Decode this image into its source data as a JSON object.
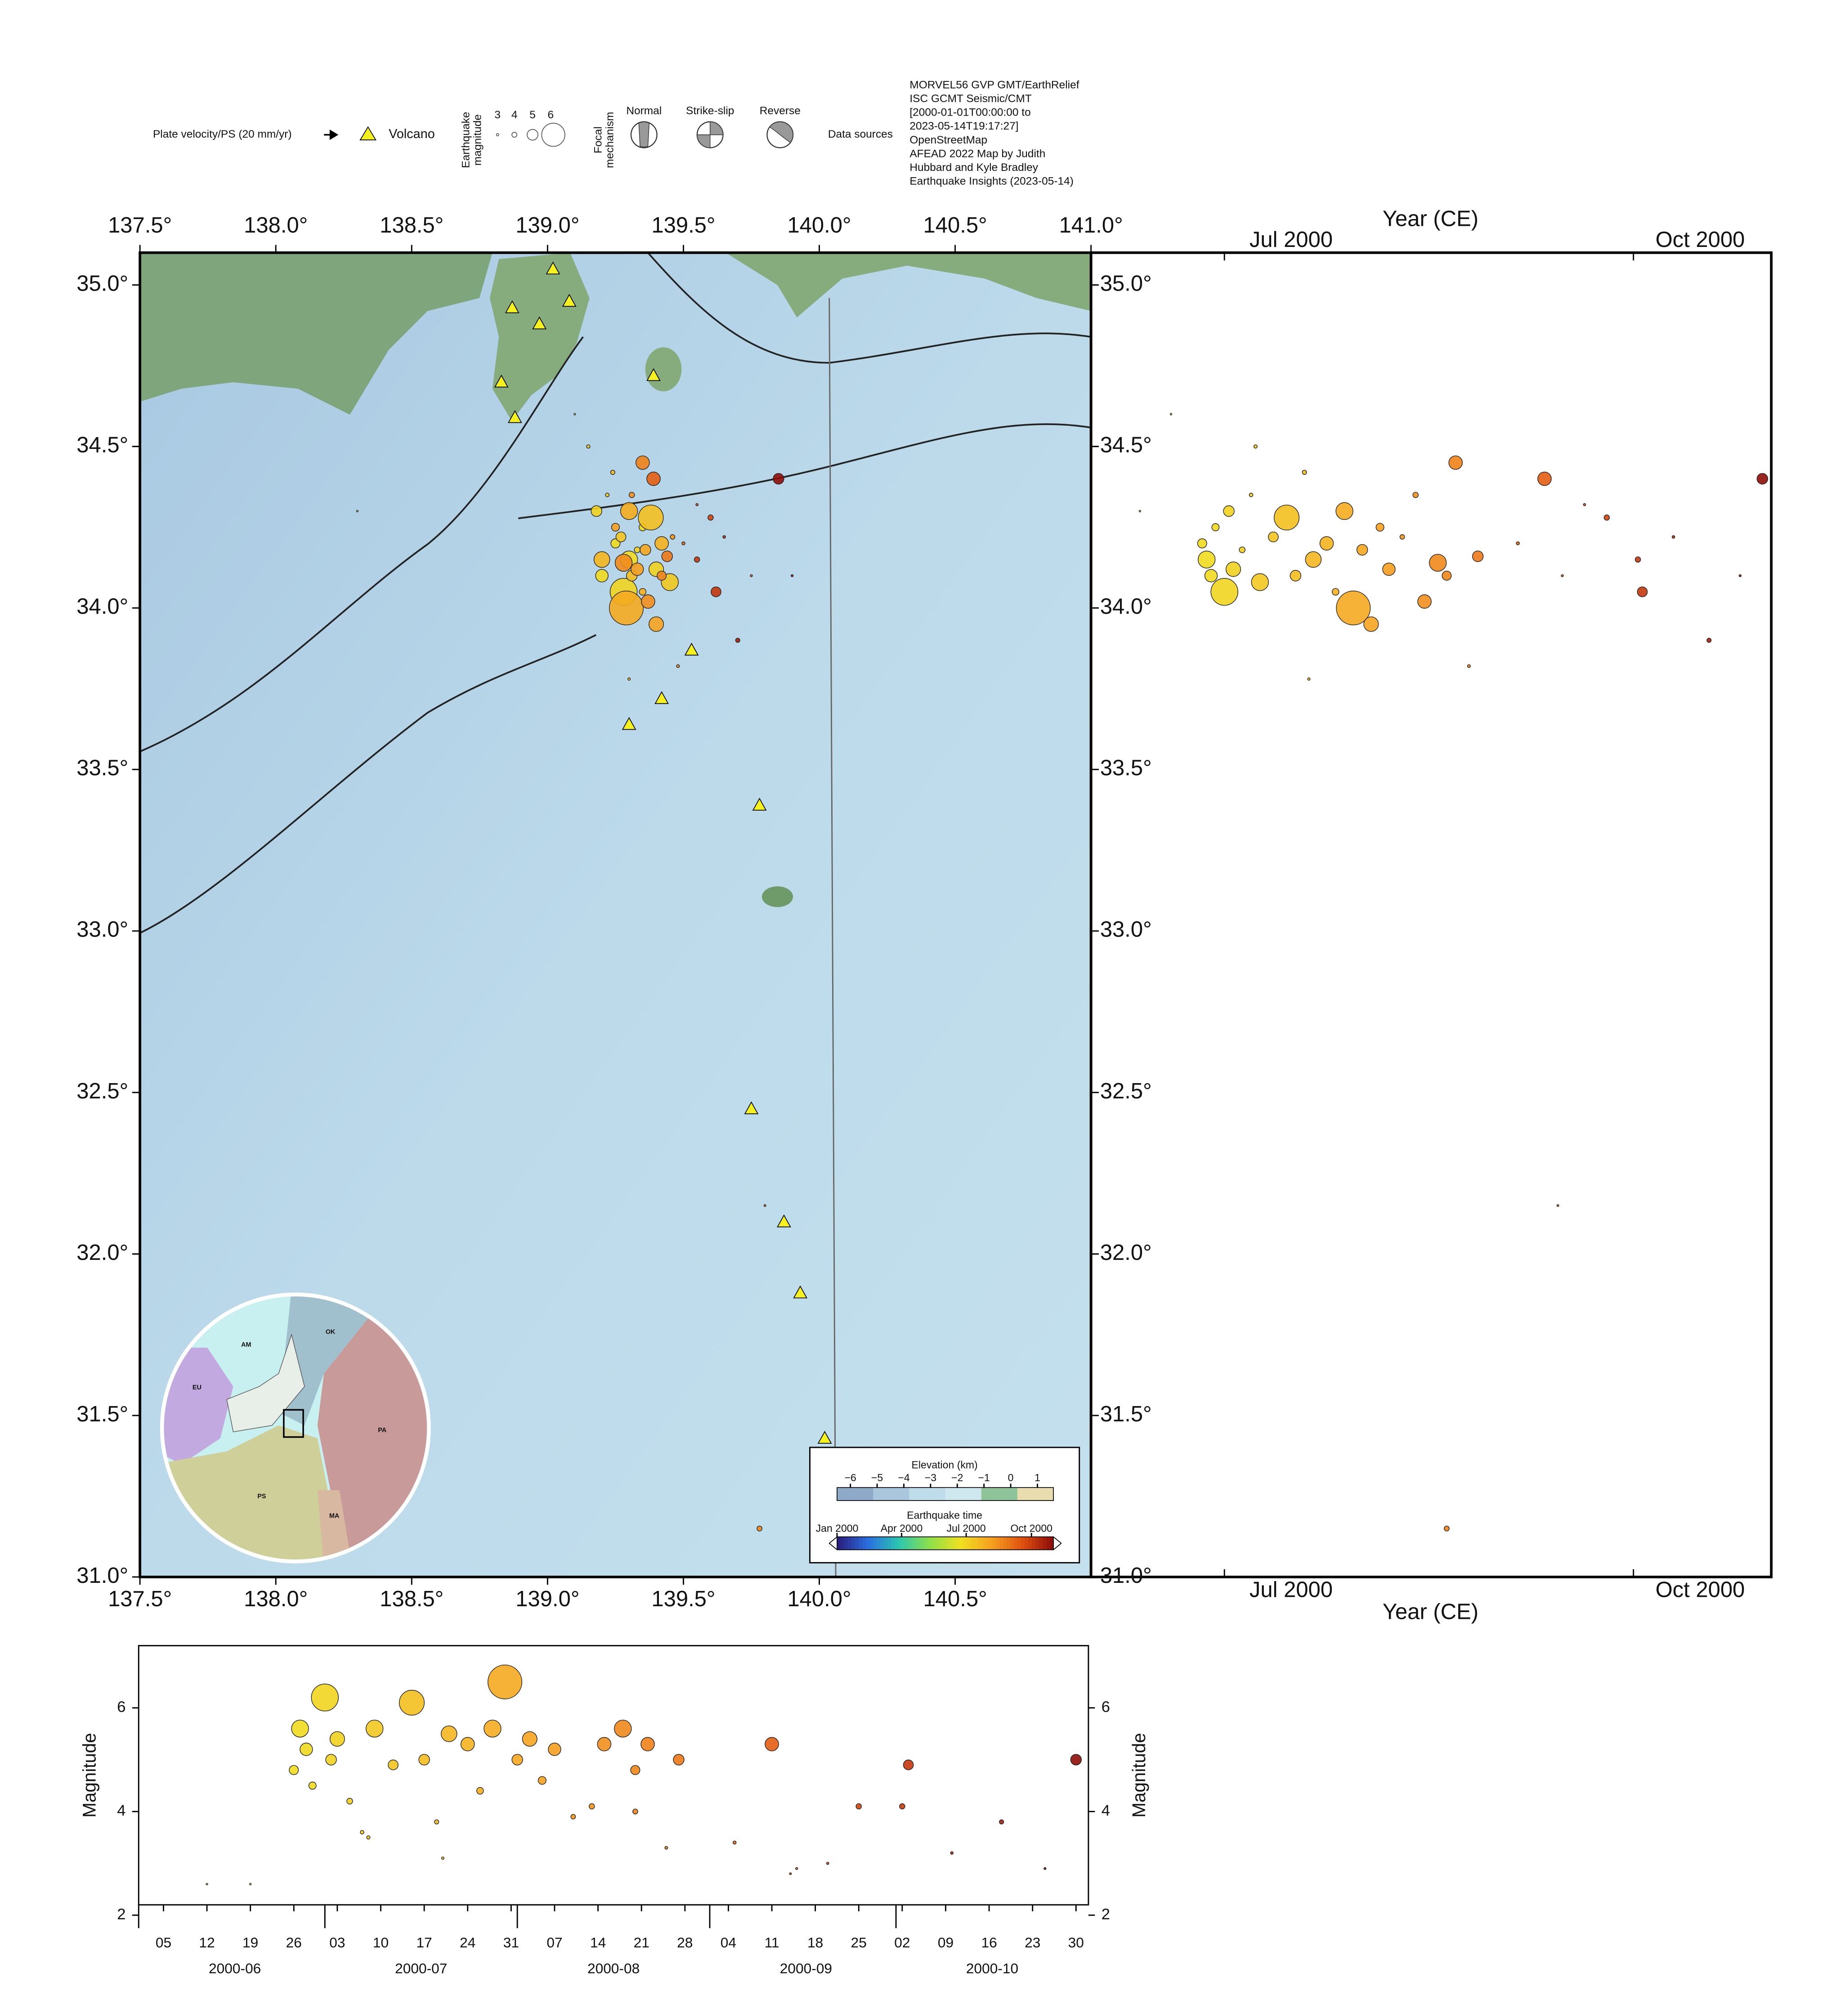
{
  "legend": {
    "plate_velocity": "Plate velocity/PS (20 mm/yr)",
    "volcano": "Volcano",
    "magnitude_title": [
      "Earthquake",
      "magnitude"
    ],
    "magnitudes": [
      3,
      4,
      5,
      6
    ],
    "focal_title": [
      "Focal",
      "mechanism"
    ],
    "focal_types": [
      "Normal",
      "Strike-slip",
      "Reverse"
    ],
    "sources_title": "Data sources",
    "sources": [
      "MORVEL56 GVP GMT/EarthRelief",
      "ISC GCMT Seismic/CMT",
      "[2000-01-01T00:00:00 to",
      "2023-05-14T19:17:27]",
      "OpenStreetMap",
      "AFEAD 2022 Map by Judith",
      "Hubbard and Kyle Bradley",
      "Earthquake Insights (2023-05-14)"
    ]
  },
  "map": {
    "xlim": [
      137.5,
      141.0
    ],
    "ylim": [
      31.0,
      35.1
    ],
    "xticks": [
      {
        "value": 137.5,
        "label": "137.5°"
      },
      {
        "value": 138.0,
        "label": "138.0°"
      },
      {
        "value": 138.5,
        "label": "138.5°"
      },
      {
        "value": 139.0,
        "label": "139.0°"
      },
      {
        "value": 139.5,
        "label": "139.5°"
      },
      {
        "value": 140.0,
        "label": "140.0°"
      },
      {
        "value": 140.5,
        "label": "140.5°"
      }
    ],
    "xticks_top": [
      {
        "value": 137.5,
        "label": "137.5°"
      },
      {
        "value": 138.0,
        "label": "138.0°"
      },
      {
        "value": 138.5,
        "label": "138.5°"
      },
      {
        "value": 139.0,
        "label": "139.0°"
      },
      {
        "value": 139.5,
        "label": "139.5°"
      },
      {
        "value": 140.0,
        "label": "140.0°"
      },
      {
        "value": 140.5,
        "label": "140.5°"
      },
      {
        "value": 141.0,
        "label": "141.0°"
      }
    ],
    "yticks": [
      {
        "value": 31.0,
        "label": "31.0°"
      },
      {
        "value": 31.5,
        "label": "31.5°"
      },
      {
        "value": 32.0,
        "label": "32.0°"
      },
      {
        "value": 32.5,
        "label": "32.5°"
      },
      {
        "value": 33.0,
        "label": "33.0°"
      },
      {
        "value": 33.5,
        "label": "33.5°"
      },
      {
        "value": 34.0,
        "label": "34.0°"
      },
      {
        "value": 34.5,
        "label": "34.5°"
      },
      {
        "value": 35.0,
        "label": "35.0°"
      }
    ]
  },
  "time_panel": {
    "title": "Year (CE)",
    "xlim": [
      "2000-06-01",
      "2000-11-01"
    ],
    "xticks": [
      {
        "value": "2000-07-01",
        "label": "Jul 2000"
      },
      {
        "value": "2000-10-01",
        "label": "Oct 2000"
      }
    ]
  },
  "magnitude_panel": {
    "ylabel": "Magnitude",
    "ylim": [
      2.2,
      7.2
    ],
    "yticks": [
      2,
      4,
      6
    ],
    "xlim": [
      "2000-06-01",
      "2000-11-01"
    ],
    "day_ticks": [
      {
        "value": "2000-06-05",
        "label": "05"
      },
      {
        "value": "2000-06-12",
        "label": "12"
      },
      {
        "value": "2000-06-19",
        "label": "19"
      },
      {
        "value": "2000-06-26",
        "label": "26"
      },
      {
        "value": "2000-07-03",
        "label": "03"
      },
      {
        "value": "2000-07-10",
        "label": "10"
      },
      {
        "value": "2000-07-17",
        "label": "17"
      },
      {
        "value": "2000-07-24",
        "label": "24"
      },
      {
        "value": "2000-07-31",
        "label": "31"
      },
      {
        "value": "2000-08-07",
        "label": "07"
      },
      {
        "value": "2000-08-14",
        "label": "14"
      },
      {
        "value": "2000-08-21",
        "label": "21"
      },
      {
        "value": "2000-08-28",
        "label": "28"
      },
      {
        "value": "2000-09-04",
        "label": "04"
      },
      {
        "value": "2000-09-11",
        "label": "11"
      },
      {
        "value": "2000-09-18",
        "label": "18"
      },
      {
        "value": "2000-09-25",
        "label": "25"
      },
      {
        "value": "2000-10-02",
        "label": "02"
      },
      {
        "value": "2000-10-09",
        "label": "09"
      },
      {
        "value": "2000-10-16",
        "label": "16"
      },
      {
        "value": "2000-10-23",
        "label": "23"
      },
      {
        "value": "2000-10-30",
        "label": "30"
      }
    ],
    "month_ticks": [
      {
        "value": "2000-06-01",
        "label": "2000-06"
      },
      {
        "value": "2000-07-01",
        "label": "2000-07"
      },
      {
        "value": "2000-08-01",
        "label": "2000-08"
      },
      {
        "value": "2000-09-01",
        "label": "2000-09"
      },
      {
        "value": "2000-10-01",
        "label": "2000-10"
      }
    ]
  },
  "colorbars": {
    "elevation_title": "Elevation (km)",
    "elevation_clim": [
      -6.5,
      1.6
    ],
    "elevation_ticks": [
      {
        "value": -6,
        "label": "−6"
      },
      {
        "value": -5,
        "label": "−5"
      },
      {
        "value": -4,
        "label": "−4"
      },
      {
        "value": -3,
        "label": "−3"
      },
      {
        "value": -2,
        "label": "−2"
      },
      {
        "value": -1,
        "label": "−1"
      },
      0,
      1
    ],
    "elevation_colormap": [
      "#8fa9c9",
      "#a9c6dc",
      "#bfdceb",
      "#cfe8ef",
      "#8fc49a",
      "#e9dcae"
    ],
    "time_title": "Earthquake time",
    "time_clim": [
      "2000-01-01",
      "2000-11-01"
    ],
    "time_ticks": [
      {
        "value": "2000-01-01",
        "label": "Jan 2000"
      },
      {
        "value": "2000-04-01",
        "label": "Apr 2000"
      },
      {
        "value": "2000-07-01",
        "label": "Jul 2000"
      },
      {
        "value": "2000-10-01",
        "label": "Oct 2000"
      }
    ],
    "time_colormap": [
      "#2a1b7a",
      "#2a6fe0",
      "#2cc6b0",
      "#8ee04a",
      "#f0e020",
      "#f6a020",
      "#e05010",
      "#8a0a0a"
    ]
  },
  "inset": {
    "labels": [
      "AM",
      "EU",
      "OK",
      "PA",
      "PS",
      "MA"
    ]
  },
  "volcanoes": {
    "lon": [
      138.87,
      138.97,
      139.02,
      139.08,
      138.83,
      138.88,
      139.39,
      139.53,
      139.42,
      139.3,
      139.78,
      139.75,
      139.87,
      139.93,
      140.02
    ],
    "lat": [
      34.93,
      34.88,
      35.05,
      34.95,
      34.7,
      34.59,
      34.72,
      33.87,
      33.72,
      33.64,
      33.39,
      32.45,
      32.1,
      31.88,
      31.43
    ]
  },
  "events": {
    "lon": [
      139.25,
      139.3,
      139.2,
      139.35,
      139.28,
      139.18,
      139.4,
      139.33,
      139.22,
      139.45,
      139.27,
      139.38,
      139.31,
      139.24,
      139.2,
      139.42,
      139.35,
      139.3,
      139.29,
      139.36,
      139.4,
      139.25,
      139.33,
      139.46,
      139.31,
      139.37,
      139.28,
      139.42,
      139.35,
      139.44,
      139.39,
      139.5,
      139.6,
      139.55,
      139.62,
      139.7,
      139.85,
      139.55,
      139.65,
      139.48,
      139.3,
      139.75,
      139.8,
      139.78,
      138.3,
      139.1,
      139.9,
      139.15
    ],
    "lat": [
      34.2,
      34.15,
      34.1,
      34.25,
      34.05,
      34.3,
      34.12,
      34.18,
      34.35,
      34.08,
      34.22,
      34.28,
      34.1,
      34.42,
      34.15,
      34.2,
      34.05,
      34.3,
      34.0,
      34.18,
      33.95,
      34.25,
      34.12,
      34.22,
      34.35,
      34.02,
      34.14,
      34.1,
      34.45,
      34.16,
      34.4,
      34.2,
      34.28,
      34.15,
      34.05,
      33.9,
      34.4,
      34.32,
      34.22,
      33.82,
      33.78,
      34.1,
      32.15,
      31.15,
      34.3,
      34.6,
      34.1,
      34.5
    ],
    "time": [
      "2000-06-26",
      "2000-06-27",
      "2000-06-28",
      "2000-06-29",
      "2000-07-01",
      "2000-07-02",
      "2000-07-03",
      "2000-07-05",
      "2000-07-07",
      "2000-07-09",
      "2000-07-12",
      "2000-07-15",
      "2000-07-17",
      "2000-07-19",
      "2000-07-21",
      "2000-07-24",
      "2000-07-26",
      "2000-07-28",
      "2000-07-30",
      "2000-08-01",
      "2000-08-03",
      "2000-08-05",
      "2000-08-07",
      "2000-08-10",
      "2000-08-13",
      "2000-08-15",
      "2000-08-18",
      "2000-08-20",
      "2000-08-22",
      "2000-08-27",
      "2000-09-11",
      "2000-09-05",
      "2000-09-25",
      "2000-10-02",
      "2000-10-03",
      "2000-10-18",
      "2000-10-30",
      "2000-09-20",
      "2000-10-10",
      "2000-08-25",
      "2000-07-20",
      "2000-09-15",
      "2000-09-14",
      "2000-08-20",
      "2000-06-12",
      "2000-06-19",
      "2000-10-25",
      "2000-07-08"
    ],
    "mag": [
      4.8,
      5.6,
      5.2,
      4.5,
      6.2,
      5.0,
      5.4,
      4.2,
      3.6,
      5.6,
      4.9,
      6.1,
      5.0,
      3.8,
      5.5,
      5.3,
      4.4,
      5.6,
      6.5,
      5.0,
      5.4,
      4.6,
      5.2,
      3.9,
      4.1,
      5.3,
      5.6,
      4.8,
      5.3,
      5.0,
      5.3,
      3.4,
      4.1,
      4.1,
      4.9,
      3.8,
      5.0,
      3.0,
      3.2,
      3.3,
      3.1,
      2.9,
      2.8,
      4.0,
      2.6,
      2.6,
      2.9,
      3.5
    ]
  }
}
